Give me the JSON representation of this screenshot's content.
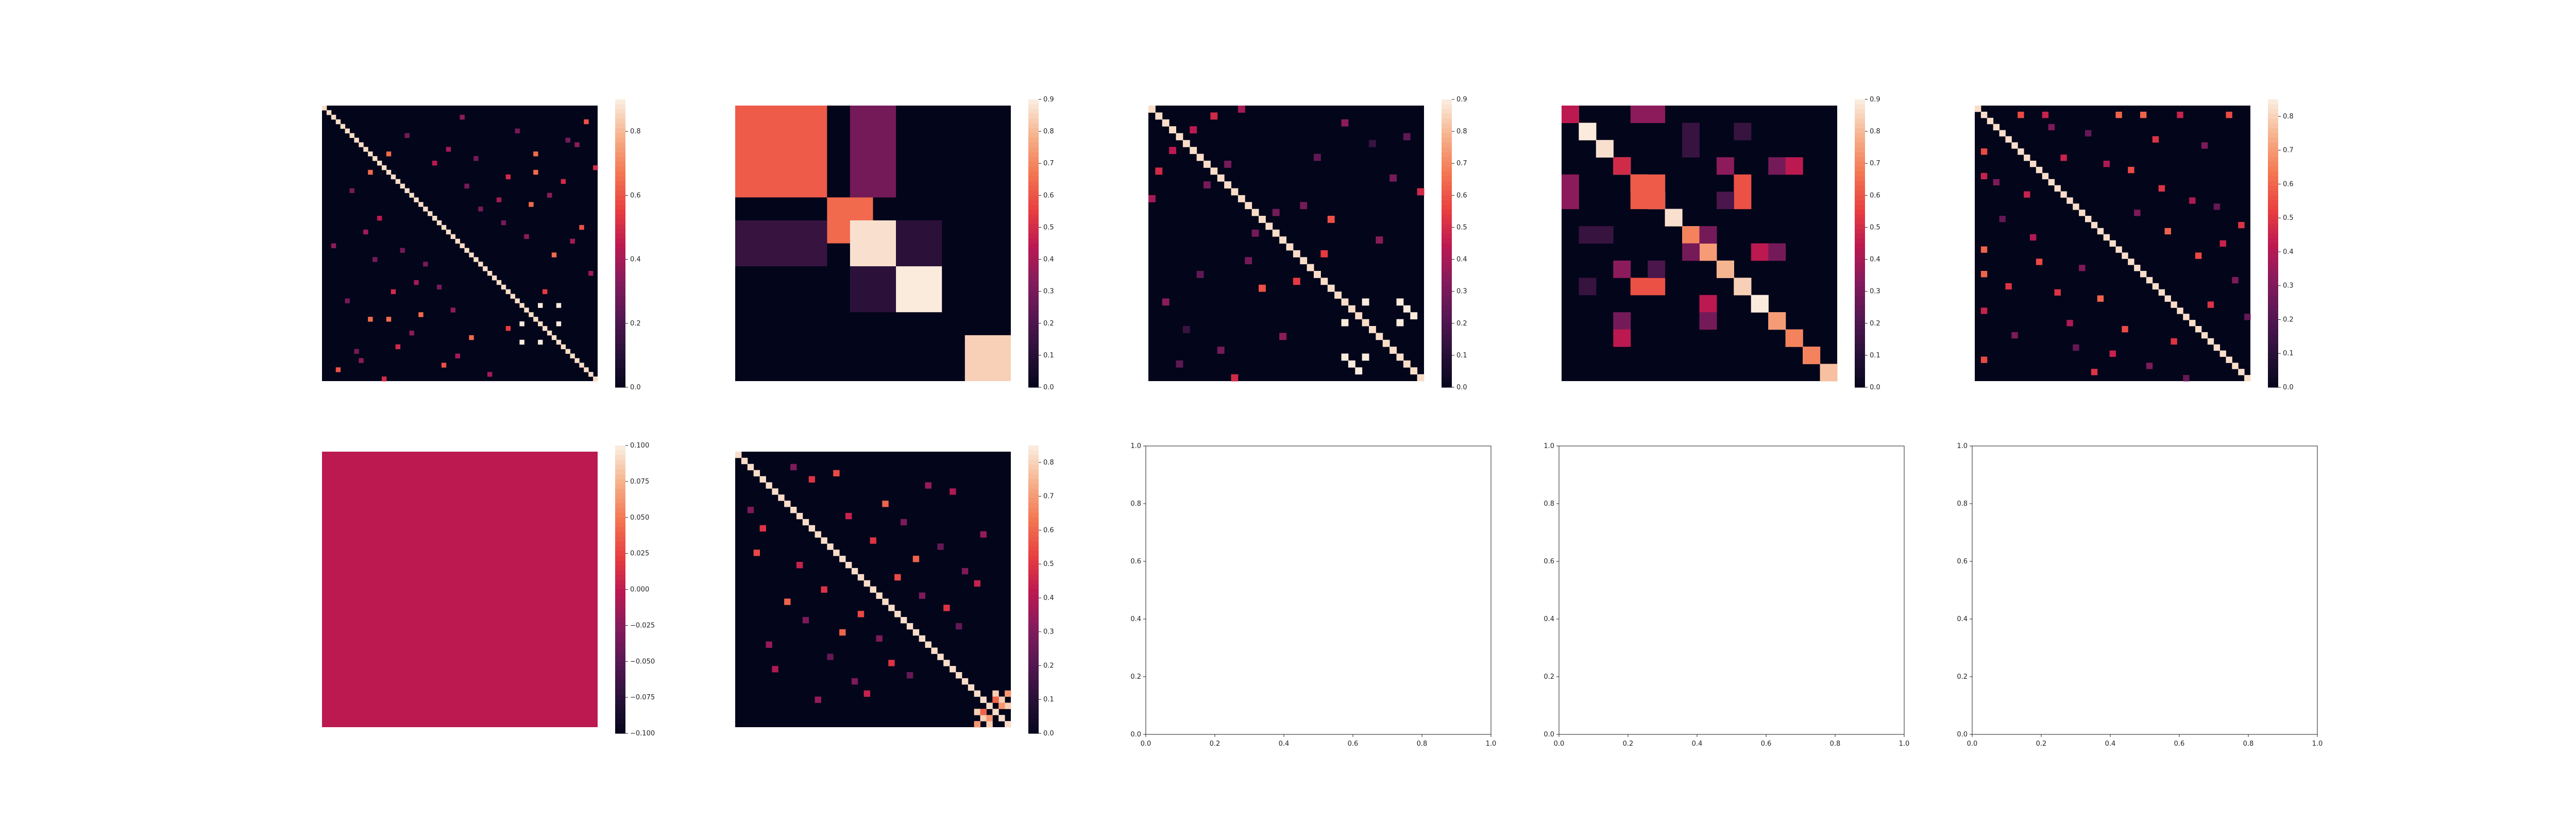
{
  "chart_data": [
    {
      "type": "heatmap",
      "n": 60,
      "vmin": 0.0,
      "vmax": 0.9,
      "colorbar_ticks": [
        "0.0",
        "0.2",
        "0.4",
        "0.6",
        "0.8"
      ],
      "cells": [
        [
          10,
          14,
          0.65
        ],
        [
          14,
          10,
          0.65
        ],
        [
          10,
          46,
          0.65
        ],
        [
          46,
          10,
          0.65
        ],
        [
          14,
          46,
          0.65
        ],
        [
          46,
          14,
          0.65
        ],
        [
          2,
          30,
          0.35
        ],
        [
          30,
          2,
          0.35
        ],
        [
          5,
          42,
          0.3
        ],
        [
          42,
          5,
          0.3
        ],
        [
          8,
          55,
          0.35
        ],
        [
          55,
          8,
          0.35
        ],
        [
          12,
          24,
          0.45
        ],
        [
          24,
          12,
          0.45
        ],
        [
          16,
          52,
          0.5
        ],
        [
          52,
          16,
          0.5
        ],
        [
          20,
          38,
          0.4
        ],
        [
          38,
          20,
          0.4
        ],
        [
          22,
          34,
          0.3
        ],
        [
          34,
          22,
          0.3
        ],
        [
          26,
          56,
          0.6
        ],
        [
          56,
          26,
          0.6
        ],
        [
          28,
          44,
          0.35
        ],
        [
          44,
          28,
          0.35
        ],
        [
          32,
          50,
          0.65
        ],
        [
          50,
          32,
          0.65
        ],
        [
          36,
          58,
          0.4
        ],
        [
          58,
          36,
          0.4
        ],
        [
          40,
          48,
          0.55
        ],
        [
          48,
          40,
          0.55
        ],
        [
          43,
          47,
          0.9
        ],
        [
          47,
          43,
          0.9
        ],
        [
          43,
          51,
          0.9
        ],
        [
          51,
          43,
          0.9
        ],
        [
          47,
          51,
          0.9
        ],
        [
          51,
          47,
          0.9
        ],
        [
          6,
          18,
          0.3
        ],
        [
          18,
          6,
          0.3
        ],
        [
          9,
          27,
          0.4
        ],
        [
          27,
          9,
          0.4
        ],
        [
          11,
          33,
          0.3
        ],
        [
          33,
          11,
          0.3
        ],
        [
          15,
          40,
          0.5
        ],
        [
          40,
          15,
          0.5
        ],
        [
          19,
          49,
          0.35
        ],
        [
          49,
          19,
          0.35
        ],
        [
          3,
          57,
          0.6
        ],
        [
          57,
          3,
          0.6
        ],
        [
          7,
          53,
          0.3
        ],
        [
          53,
          7,
          0.3
        ],
        [
          13,
          59,
          0.5
        ],
        [
          59,
          13,
          0.5
        ],
        [
          17,
          31,
          0.3
        ],
        [
          31,
          17,
          0.3
        ],
        [
          21,
          45,
          0.65
        ],
        [
          45,
          21,
          0.65
        ],
        [
          25,
          39,
          0.3
        ],
        [
          39,
          25,
          0.3
        ],
        [
          29,
          54,
          0.4
        ],
        [
          54,
          29,
          0.4
        ]
      ]
    },
    {
      "type": "heatmap",
      "n": 12,
      "vmin": 0.0,
      "vmax": 0.9,
      "colorbar_ticks": [
        "0.0",
        "0.1",
        "0.2",
        "0.3",
        "0.4",
        "0.5",
        "0.6",
        "0.7",
        "0.8",
        "0.9"
      ],
      "blocks": [
        [
          0,
          0,
          4,
          4,
          0.62
        ],
        [
          0,
          5,
          4,
          7,
          0.3
        ],
        [
          4,
          4,
          6,
          6,
          0.65
        ],
        [
          5,
          0,
          7,
          4,
          0.15
        ],
        [
          5,
          5,
          7,
          7,
          0.88
        ],
        [
          7,
          5,
          9,
          7,
          0.12
        ],
        [
          5,
          7,
          7,
          9,
          0.12
        ],
        [
          7,
          7,
          9,
          9,
          0.9
        ],
        [
          10,
          10,
          12,
          12,
          0.85
        ]
      ]
    },
    {
      "type": "heatmap",
      "n": 40,
      "vmin": 0.0,
      "vmax": 0.9,
      "colorbar_ticks": [
        "0.0",
        "0.1",
        "0.2",
        "0.3",
        "0.4",
        "0.5",
        "0.6",
        "0.7",
        "0.8",
        "0.9"
      ],
      "cells": [
        [
          0,
          13,
          0.4
        ],
        [
          13,
          0
        ],
        [
          3,
          6,
          0.45
        ],
        [
          6,
          3,
          0.45
        ],
        [
          8,
          11,
          0.3
        ],
        [
          11,
          8,
          0.3
        ],
        [
          28,
          31,
          0.9
        ],
        [
          31,
          28,
          0.9
        ],
        [
          28,
          36,
          0.9
        ],
        [
          36,
          28,
          0.9
        ],
        [
          31,
          36,
          0.9
        ],
        [
          36,
          31,
          0.9
        ],
        [
          29,
          37,
          0.9
        ],
        [
          37,
          29,
          0.9
        ],
        [
          30,
          38,
          0.9
        ],
        [
          38,
          30,
          0.9
        ],
        [
          4,
          37,
          0.25
        ],
        [
          37,
          4,
          0.25
        ],
        [
          2,
          28,
          0.35
        ],
        [
          28,
          2,
          0.35
        ],
        [
          14,
          22,
          0.3
        ],
        [
          22,
          14,
          0.3
        ],
        [
          16,
          26,
          0.6
        ],
        [
          26,
          16,
          0.6
        ],
        [
          10,
          35,
          0.3
        ],
        [
          35,
          10,
          0.3
        ],
        [
          19,
          33,
          0.35
        ],
        [
          33,
          19,
          0.35
        ],
        [
          21,
          25,
          0.55
        ],
        [
          25,
          21,
          0.55
        ],
        [
          12,
          39,
          0.5
        ],
        [
          39,
          12,
          0.5
        ],
        [
          1,
          9,
          0.5
        ],
        [
          9,
          1,
          0.5
        ],
        [
          15,
          18,
          0.3
        ],
        [
          18,
          15,
          0.3
        ],
        [
          7,
          24,
          0.25
        ],
        [
          24,
          7,
          0.25
        ],
        [
          5,
          32,
          0.15
        ],
        [
          32,
          5,
          0.15
        ]
      ]
    },
    {
      "type": "heatmap",
      "n": 16,
      "vmin": 0.0,
      "vmax": 0.9,
      "colorbar_ticks": [
        "0.0",
        "0.1",
        "0.2",
        "0.3",
        "0.4",
        "0.5",
        "0.6",
        "0.7",
        "0.8",
        "0.9"
      ],
      "cells": [
        [
          0,
          0,
          0.45
        ],
        [
          1,
          1,
          0.9
        ],
        [
          2,
          2,
          0.88
        ],
        [
          3,
          3,
          0.5
        ],
        [
          4,
          4,
          0.65
        ],
        [
          5,
          5,
          0.9
        ],
        [
          6,
          6,
          0.88
        ],
        [
          7,
          7,
          0.7
        ],
        [
          8,
          8,
          0.75
        ],
        [
          9,
          9,
          0.8
        ],
        [
          10,
          10,
          0.85
        ],
        [
          11,
          11,
          0.9
        ],
        [
          12,
          12,
          0.75
        ],
        [
          13,
          13,
          0.7
        ],
        [
          14,
          14,
          0.7
        ],
        [
          15,
          15,
          0.82
        ],
        [
          4,
          0,
          0.35
        ],
        [
          5,
          0,
          0.35
        ],
        [
          0,
          4,
          0.35
        ],
        [
          0,
          5,
          0.35
        ],
        [
          4,
          4,
          0.62
        ],
        [
          5,
          4,
          0.62
        ],
        [
          4,
          5,
          0.62
        ],
        [
          5,
          5,
          0.62
        ],
        [
          1,
          7,
          0.15
        ],
        [
          2,
          7,
          0.15
        ],
        [
          7,
          1,
          0.15
        ],
        [
          7,
          2,
          0.15
        ],
        [
          1,
          10,
          0.15
        ],
        [
          10,
          1,
          0.15
        ],
        [
          3,
          9,
          0.35
        ],
        [
          9,
          3,
          0.35
        ],
        [
          4,
          10,
          0.6
        ],
        [
          5,
          10,
          0.6
        ],
        [
          10,
          4,
          0.6
        ],
        [
          10,
          5,
          0.6
        ],
        [
          8,
          7,
          0.3
        ],
        [
          7,
          8,
          0.3
        ],
        [
          12,
          3,
          0.3
        ],
        [
          3,
          12,
          0.3
        ],
        [
          9,
          5,
          0.2
        ],
        [
          5,
          9,
          0.2
        ],
        [
          11,
          8,
          0.45
        ],
        [
          8,
          11,
          0.45
        ],
        [
          13,
          3,
          0.45
        ],
        [
          3,
          13,
          0.45
        ],
        [
          12,
          8,
          0.3
        ],
        [
          8,
          12,
          0.3
        ]
      ]
    },
    {
      "type": "heatmap",
      "n": 45,
      "vmin": 0.0,
      "vmax": 0.85,
      "colorbar_ticks": [
        "0.0",
        "0.1",
        "0.2",
        "0.3",
        "0.4",
        "0.5",
        "0.6",
        "0.7",
        "0.8"
      ],
      "cells": [
        [
          1,
          7,
          0.55
        ],
        [
          7,
          1,
          0.55
        ],
        [
          1,
          11,
          0.45
        ],
        [
          11,
          1,
          0.45
        ],
        [
          1,
          23,
          0.6
        ],
        [
          23,
          1,
          0.6
        ],
        [
          1,
          27,
          0.6
        ],
        [
          27,
          1,
          0.6
        ],
        [
          1,
          33,
          0.45
        ],
        [
          33,
          1,
          0.45
        ],
        [
          1,
          41,
          0.55
        ],
        [
          41,
          1,
          0.55
        ],
        [
          3,
          12,
          0.3
        ],
        [
          12,
          3,
          0.3
        ],
        [
          4,
          18,
          0.25
        ],
        [
          18,
          4,
          0.25
        ],
        [
          5,
          29,
          0.5
        ],
        [
          29,
          5,
          0.5
        ],
        [
          6,
          37,
          0.3
        ],
        [
          37,
          6,
          0.3
        ],
        [
          8,
          14,
          0.45
        ],
        [
          14,
          8,
          0.45
        ],
        [
          9,
          21,
          0.4
        ],
        [
          21,
          9,
          0.4
        ],
        [
          10,
          25,
          0.55
        ],
        [
          25,
          10,
          0.55
        ],
        [
          13,
          30,
          0.5
        ],
        [
          30,
          13,
          0.5
        ],
        [
          15,
          35,
          0.4
        ],
        [
          35,
          15,
          0.4
        ],
        [
          16,
          39,
          0.25
        ],
        [
          39,
          16,
          0.25
        ],
        [
          17,
          26,
          0.3
        ],
        [
          26,
          17,
          0.3
        ],
        [
          19,
          43,
          0.5
        ],
        [
          43,
          19,
          0.5
        ],
        [
          20,
          31,
          0.6
        ],
        [
          31,
          20,
          0.6
        ],
        [
          22,
          40,
          0.45
        ],
        [
          40,
          22,
          0.45
        ],
        [
          24,
          36,
          0.55
        ],
        [
          36,
          24,
          0.55
        ],
        [
          28,
          42,
          0.3
        ],
        [
          42,
          28,
          0.3
        ],
        [
          32,
          38,
          0.5
        ],
        [
          38,
          32,
          0.5
        ],
        [
          34,
          44,
          0.25
        ],
        [
          44,
          34,
          0.25
        ]
      ]
    },
    {
      "type": "heatmap",
      "n": 1,
      "vmin": -0.1,
      "vmax": 0.1,
      "fill_value": 0.0,
      "colorbar_ticks": [
        "−0.100",
        "−0.075",
        "−0.050",
        "−0.025",
        "0.000",
        "0.025",
        "0.050",
        "0.075",
        "0.100"
      ]
    },
    {
      "type": "heatmap",
      "n": 45,
      "vmin": 0.0,
      "vmax": 0.85,
      "colorbar_ticks": [
        "0.0",
        "0.1",
        "0.2",
        "0.3",
        "0.4",
        "0.5",
        "0.6",
        "0.7",
        "0.8"
      ],
      "cells": [
        [
          3,
          16,
          0.55
        ],
        [
          16,
          3,
          0.55
        ],
        [
          2,
          9,
          0.3
        ],
        [
          9,
          2,
          0.3
        ],
        [
          4,
          12,
          0.5
        ],
        [
          12,
          4,
          0.5
        ],
        [
          5,
          31,
          0.35
        ],
        [
          31,
          5,
          0.35
        ],
        [
          6,
          35,
          0.4
        ],
        [
          35,
          6,
          0.4
        ],
        [
          8,
          24,
          0.6
        ],
        [
          24,
          8,
          0.6
        ],
        [
          10,
          18,
          0.45
        ],
        [
          18,
          10,
          0.45
        ],
        [
          11,
          27,
          0.3
        ],
        [
          27,
          11,
          0.3
        ],
        [
          13,
          40,
          0.35
        ],
        [
          40,
          13,
          0.35
        ],
        [
          14,
          22,
          0.5
        ],
        [
          22,
          14,
          0.5
        ],
        [
          15,
          33,
          0.25
        ],
        [
          33,
          15,
          0.25
        ],
        [
          17,
          29,
          0.6
        ],
        [
          29,
          17,
          0.6
        ],
        [
          19,
          37,
          0.3
        ],
        [
          37,
          19,
          0.3
        ],
        [
          20,
          26,
          0.55
        ],
        [
          26,
          20,
          0.55
        ],
        [
          21,
          39,
          0.45
        ],
        [
          39,
          21,
          0.45
        ],
        [
          23,
          30,
          0.3
        ],
        [
          30,
          23,
          0.3
        ],
        [
          25,
          34,
          0.5
        ],
        [
          34,
          25,
          0.5
        ],
        [
          28,
          36,
          0.25
        ],
        [
          36,
          28,
          0.25
        ],
        [
          39,
          42,
          0.8
        ],
        [
          42,
          39,
          0.8
        ],
        [
          40,
          43,
          0.8
        ],
        [
          43,
          40,
          0.8
        ],
        [
          41,
          44,
          0.8
        ],
        [
          44,
          41,
          0.8
        ],
        [
          39,
          44,
          0.7
        ],
        [
          44,
          39,
          0.7
        ],
        [
          40,
          42,
          0.6
        ],
        [
          42,
          40,
          0.6
        ],
        [
          41,
          43,
          0.7
        ],
        [
          43,
          41,
          0.7
        ]
      ]
    },
    {
      "type": "empty",
      "xlim": [
        0,
        1
      ],
      "ylim": [
        0,
        1
      ],
      "xticks": [
        "0.0",
        "0.2",
        "0.4",
        "0.6",
        "0.8",
        "1.0"
      ],
      "yticks": [
        "0.0",
        "0.2",
        "0.4",
        "0.6",
        "0.8",
        "1.0"
      ]
    },
    {
      "type": "empty",
      "xlim": [
        0,
        1
      ],
      "ylim": [
        0,
        1
      ],
      "xticks": [
        "0.0",
        "0.2",
        "0.4",
        "0.6",
        "0.8",
        "1.0"
      ],
      "yticks": [
        "0.0",
        "0.2",
        "0.4",
        "0.6",
        "0.8",
        "1.0"
      ]
    },
    {
      "type": "empty",
      "xlim": [
        0,
        1
      ],
      "ylim": [
        0,
        1
      ],
      "xticks": [
        "0.0",
        "0.2",
        "0.4",
        "0.6",
        "0.8",
        "1.0"
      ],
      "yticks": [
        "0.0",
        "0.2",
        "0.4",
        "0.6",
        "0.8",
        "1.0"
      ]
    }
  ]
}
